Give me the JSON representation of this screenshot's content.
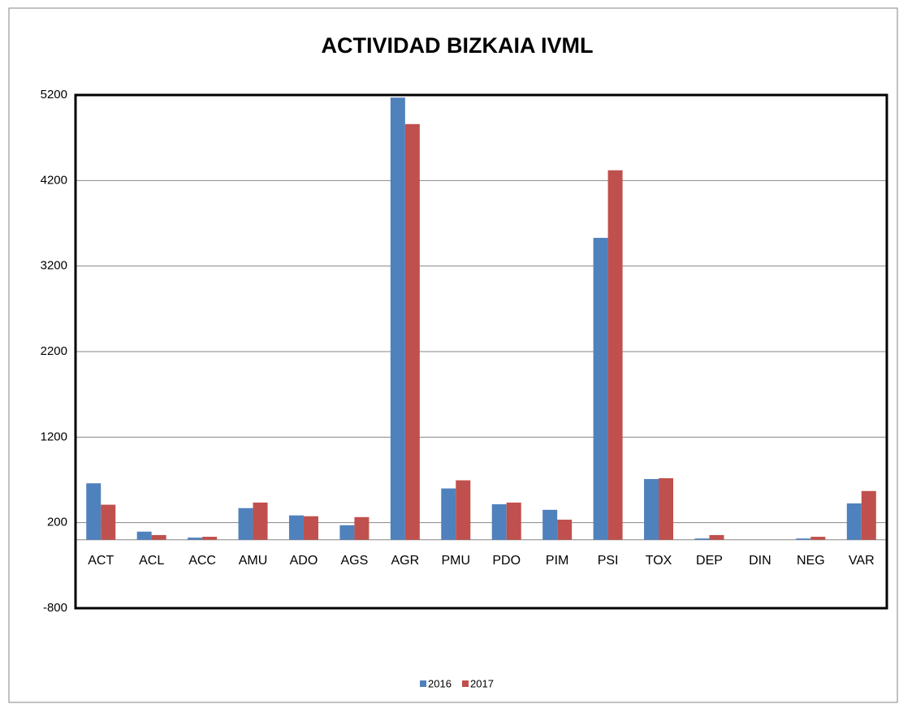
{
  "chart_data": {
    "type": "bar",
    "title": "ACTIVIDAD BIZKAIA IVML",
    "categories": [
      "ACT",
      "ACL",
      "ACC",
      "AMU",
      "ADO",
      "AGS",
      "AGR",
      "PMU",
      "PDO",
      "PIM",
      "PSI",
      "TOX",
      "DEP",
      "DIN",
      "NEG",
      "VAR"
    ],
    "series": [
      {
        "name": "2016",
        "color": "#4f81bd",
        "values": [
          660,
          95,
          25,
          370,
          285,
          170,
          5170,
          600,
          415,
          350,
          3530,
          710,
          15,
          0,
          15,
          425
        ]
      },
      {
        "name": "2017",
        "color": "#c0504d",
        "values": [
          410,
          55,
          35,
          435,
          275,
          265,
          4860,
          695,
          435,
          235,
          4320,
          720,
          55,
          0,
          35,
          570
        ]
      }
    ],
    "ylim": [
      -800,
      5200
    ],
    "yticks": [
      -800,
      200,
      1200,
      2200,
      3200,
      4200,
      5200
    ],
    "grid": true,
    "legend": "bottom"
  }
}
